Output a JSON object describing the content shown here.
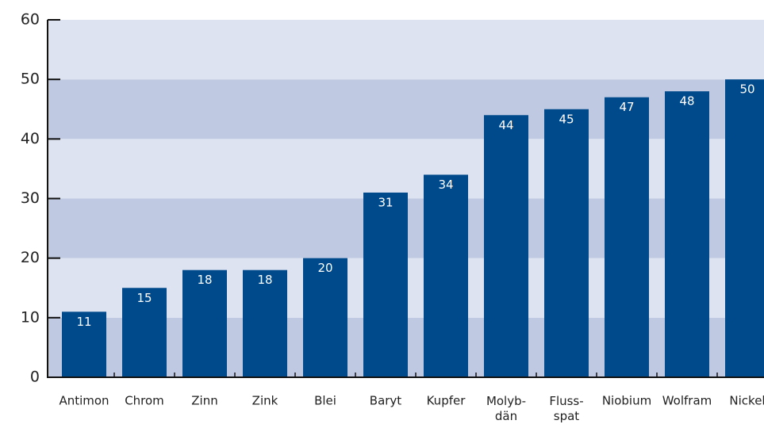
{
  "chart_data": {
    "type": "bar",
    "categories": [
      "Antimon",
      "Chrom",
      "Zinn",
      "Zink",
      "Blei",
      "Baryt",
      "Kupfer",
      "Molyb-\ndän",
      "Fluss-\nspat",
      "Niobium",
      "Wolfram",
      "Nickel"
    ],
    "values": [
      11,
      15,
      18,
      18,
      20,
      31,
      34,
      44,
      45,
      47,
      48,
      50
    ],
    "color": "#004a8c",
    "ylim": [
      0,
      60
    ],
    "yticks": [
      0,
      10,
      20,
      30,
      40,
      50,
      60
    ],
    "bands": [
      "#bfcae2",
      "#dde3f1"
    ]
  }
}
